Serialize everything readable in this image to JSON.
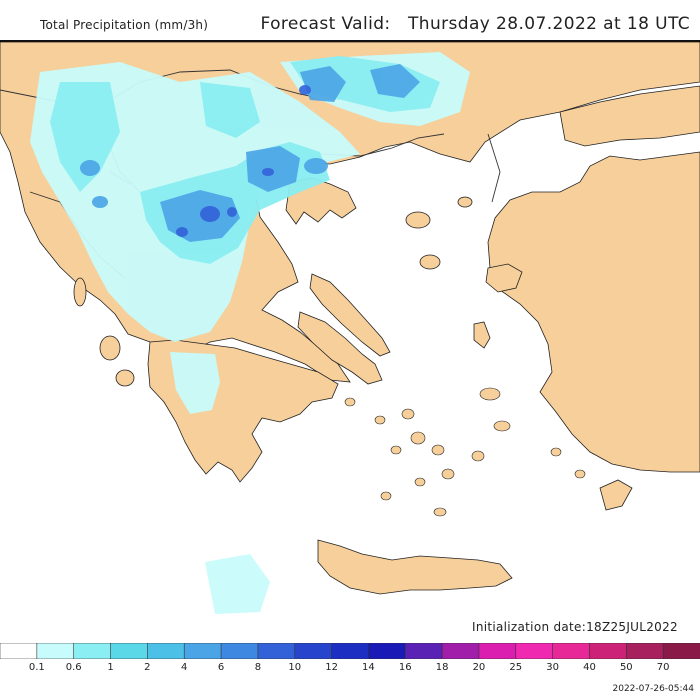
{
  "header": {
    "title": "Total Precipitation (mm/3h)",
    "valid_label": "Forecast Valid:",
    "valid_value": "Thursday 28.07.2022 at 18 UTC"
  },
  "footer": {
    "init_label": "Initialization date:",
    "init_value": "18Z25JUL2022",
    "stamp": "2022-07-26-05:44"
  },
  "legend": {
    "colors": [
      "#ffffff",
      "#c8fbfb",
      "#8aeef2",
      "#5ad8e8",
      "#4cc0e6",
      "#4aa4e6",
      "#3f88e2",
      "#3362d8",
      "#2744cc",
      "#1d2ec2",
      "#1a1ab6",
      "#5a22b4",
      "#a01eaa",
      "#dc1eb0",
      "#f02ab0",
      "#e82896",
      "#cc2278",
      "#a8205e",
      "#8a1a48"
    ],
    "labels": [
      "0.1",
      "0.6",
      "1",
      "2",
      "4",
      "6",
      "8",
      "10",
      "12",
      "14",
      "16",
      "18",
      "20",
      "25",
      "30",
      "40",
      "50",
      "70"
    ]
  },
  "map": {
    "land_color": "#f6cf9a",
    "sea_color": "#ffffff",
    "rain_light": "#c8fbfb",
    "rain_med": "#8aeef2",
    "rain_heavy": "#4aa4e6",
    "rain_peak": "#3362d8"
  }
}
